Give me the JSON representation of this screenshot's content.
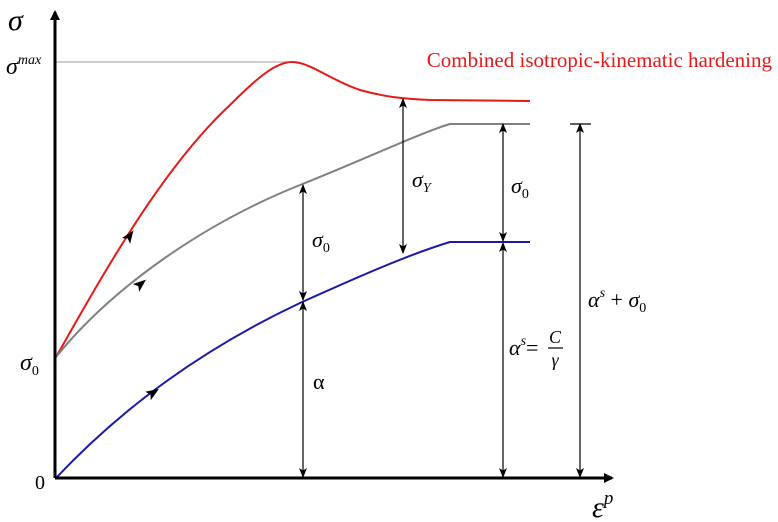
{
  "title": "Combined isotropic-kinematic hardening",
  "axes": {
    "y_label": "σ",
    "x_label": "ε",
    "x_label_sup": "p",
    "origin_label": "0"
  },
  "y_ticks": {
    "sigma_max": "σ",
    "sigma_max_sup": "max",
    "sigma_0": "σ",
    "sigma_0_sub": "0"
  },
  "annotations": {
    "sigma_y": {
      "base": "σ",
      "sub": "Y"
    },
    "sigma_0_mid": {
      "base": "σ",
      "sub": "0"
    },
    "sigma_0_right": {
      "base": "σ",
      "sub": "0"
    },
    "alpha": "α",
    "alpha_s_label": {
      "base": "α",
      "sup": "s",
      "eq": "=",
      "num": "C",
      "den": "γ"
    },
    "alpha_s_plus_sigma0": {
      "base": "α",
      "sup": "s",
      "plus": " + ",
      "sigma": "σ",
      "sub": "0"
    }
  },
  "curves": [
    {
      "name": "combined",
      "color": "#e81818"
    },
    {
      "name": "isotropic",
      "color": "#808080"
    },
    {
      "name": "kinematic",
      "color": "#1a1aa8"
    }
  ],
  "colors": {
    "axis": "#000000",
    "guide": "#b0b0b0",
    "title": "#e81818"
  }
}
